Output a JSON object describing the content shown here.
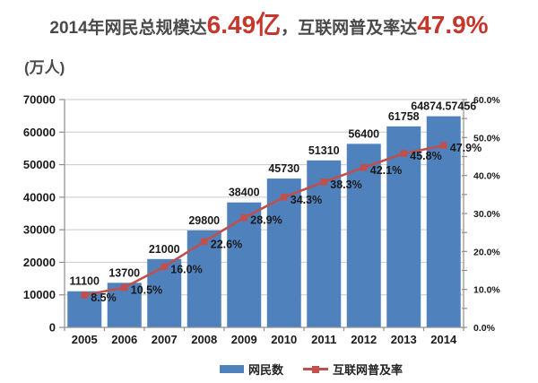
{
  "title": {
    "prefix": "2014年网民总规模达",
    "highlight_users": "6.49亿",
    "middle": "，互联网普及率达",
    "highlight_rate": "47.9%"
  },
  "unit_label": "(万人)",
  "colors": {
    "bar": "#4f81bd",
    "line": "#c0504d",
    "grid": "#c9c9c9",
    "axis": "#8f8f8f",
    "text": "#1a1a1a",
    "title_gray": "#4a4a4a",
    "title_red": "#c5372c"
  },
  "legend": [
    {
      "label": "网民数",
      "marker": "bar-swatch"
    },
    {
      "label": "互联网普及率",
      "marker": "line-swatch"
    }
  ],
  "chart_data": {
    "type": "bar",
    "subtype": "combo-bar-line-dual-axis",
    "title": "2014年网民总规模达6.49亿，互联网普及率达47.9%",
    "ylabel_left": "万人",
    "ylabel_right": "%",
    "categories": [
      "2005",
      "2006",
      "2007",
      "2008",
      "2009",
      "2010",
      "2011",
      "2012",
      "2013",
      "2014"
    ],
    "series": [
      {
        "name": "网民数",
        "type": "bar",
        "axis": "left",
        "unit": "万人",
        "values": [
          11100,
          13700,
          21000,
          29800,
          38400,
          45730,
          51310,
          56400,
          61758,
          64874.57456
        ],
        "labels": [
          "11100",
          "13700",
          "21000",
          "29800",
          "38400",
          "45730",
          "51310",
          "56400",
          "61758",
          "64874.57456"
        ]
      },
      {
        "name": "互联网普及率",
        "type": "line",
        "axis": "right",
        "unit": "%",
        "values": [
          8.5,
          10.5,
          16.0,
          22.6,
          28.9,
          34.3,
          38.3,
          42.1,
          45.8,
          47.9
        ],
        "labels": [
          "8.5%",
          "10.5%",
          "16.0%",
          "22.6%",
          "28.9%",
          "34.3%",
          "38.3%",
          "42.1%",
          "45.8%",
          "47.9%"
        ]
      }
    ],
    "left_axis": {
      "min": 0,
      "max": 70000,
      "step": 10000,
      "tick_labels": [
        "0",
        "10000",
        "20000",
        "30000",
        "40000",
        "50000",
        "60000",
        "70000"
      ]
    },
    "right_axis": {
      "min": 0,
      "max": 60,
      "step": 10,
      "minor_step": 5,
      "tick_labels": [
        "0.0%",
        "10.0%",
        "20.0%",
        "30.0%",
        "40.0%",
        "50.0%",
        "60.0%"
      ]
    },
    "grid": "horizontal",
    "legend_position": "bottom"
  }
}
